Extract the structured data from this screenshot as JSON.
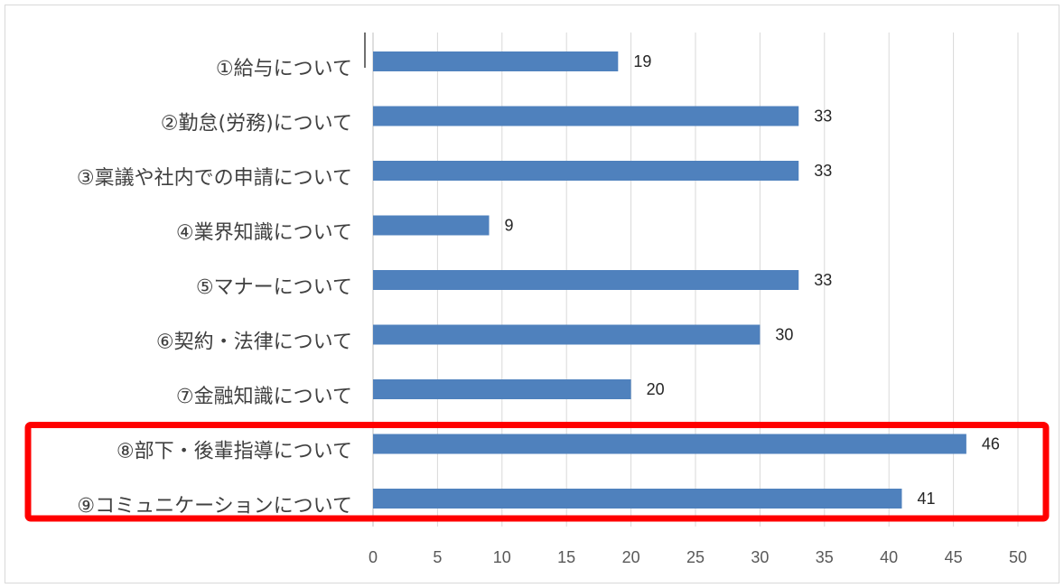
{
  "chart_data": {
    "type": "bar",
    "orientation": "horizontal",
    "categories": [
      "①給与について",
      "②勤怠(労務)について",
      "③稟議や社内での申請について",
      "④業界知識について",
      "⑤マナーについて",
      "⑥契約・法律について",
      "⑦金融知識について",
      "⑧部下・後輩指導について",
      "⑨コミュニケーションについて"
    ],
    "values": [
      19,
      33,
      33,
      9,
      33,
      30,
      20,
      46,
      41
    ],
    "data_labels": [
      "19",
      "33",
      "33",
      "9",
      "33",
      "30",
      "20",
      "46",
      "41"
    ],
    "x_ticks": [
      "0",
      "5",
      "10",
      "15",
      "20",
      "25",
      "30",
      "35",
      "40",
      "45",
      "50"
    ],
    "xlim": [
      0,
      50
    ],
    "grid": "vertical",
    "bar_color": "#4f81bd",
    "highlight": {
      "categories": [
        "⑧部下・後輩指導について",
        "⑨コミュニケーションについて"
      ],
      "color": "#ff0000"
    }
  }
}
